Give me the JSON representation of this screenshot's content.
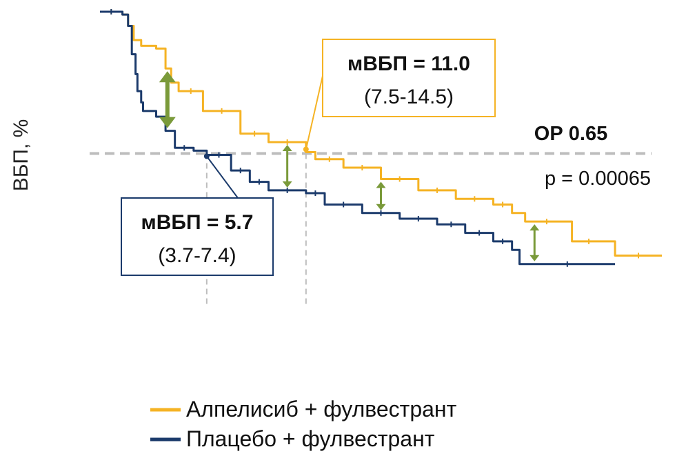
{
  "chart_data": {
    "type": "line",
    "step": true,
    "ylabel": "ВБП, %",
    "xlabel": "",
    "xlim": [
      0,
      30
    ],
    "ylim": [
      0,
      100
    ],
    "grid": false,
    "legend_placement": "bottom",
    "series": [
      {
        "name": "Алпелисиб + фулвестрант",
        "color": "#F5B324",
        "x": [
          0,
          1.2,
          1.5,
          1.8,
          2.2,
          3.0,
          3.5,
          3.8,
          4.2,
          5.5,
          7.5,
          9.0,
          11.0,
          11.5,
          13.0,
          15.0,
          17.0,
          19.0,
          21.0,
          22.0,
          22.7,
          25.0,
          25.2,
          27.0,
          27.5,
          30.0
        ],
        "y": [
          100,
          99,
          95,
          90,
          88,
          87,
          80,
          75,
          72,
          65,
          57,
          54,
          50.5,
          48,
          45,
          41,
          37,
          34,
          32,
          29,
          26,
          26,
          19,
          19,
          14,
          14
        ]
      },
      {
        "name": "Плацебо + фулвестрант",
        "color": "#1B3A6B",
        "x": [
          0,
          1.2,
          1.5,
          1.7,
          1.9,
          2.0,
          2.2,
          2.3,
          3.0,
          3.5,
          4.0,
          5.0,
          5.7,
          7.0,
          8.0,
          9.0,
          11.0,
          12.0,
          14.0,
          16.0,
          18.0,
          19.5,
          21.0,
          22.0,
          22.4,
          27.5
        ],
        "y": [
          100,
          99,
          95,
          85,
          78,
          72,
          68,
          65,
          63,
          58,
          52,
          51,
          49.5,
          44,
          40,
          37,
          36,
          32,
          29,
          27,
          25,
          22,
          19,
          16,
          11,
          11
        ]
      }
    ],
    "median_lines": [
      {
        "series": "Плацебо + фулвестрант",
        "x": 5.7
      },
      {
        "series": "Алпелисиб + фулвестрант",
        "x": 11.0
      }
    ],
    "difference_arrows_x": [
      3.6,
      10.0,
      15.0,
      23.2
    ],
    "annotations": {
      "alpelisib_median_label": "мВБП = 11.0",
      "alpelisib_median_ci": "(7.5-14.5)",
      "placebo_median_label": "мВБП = 5.7",
      "placebo_median_ci": "(3.7-7.4)",
      "hazard_ratio": "ОР 0.65",
      "p_value": "p = 0.00065"
    },
    "colors": {
      "alpelisib": "#F5B324",
      "placebo": "#1B3A6B",
      "arrow": "#7A9A3A",
      "dashed": "#BDBDBD"
    }
  }
}
